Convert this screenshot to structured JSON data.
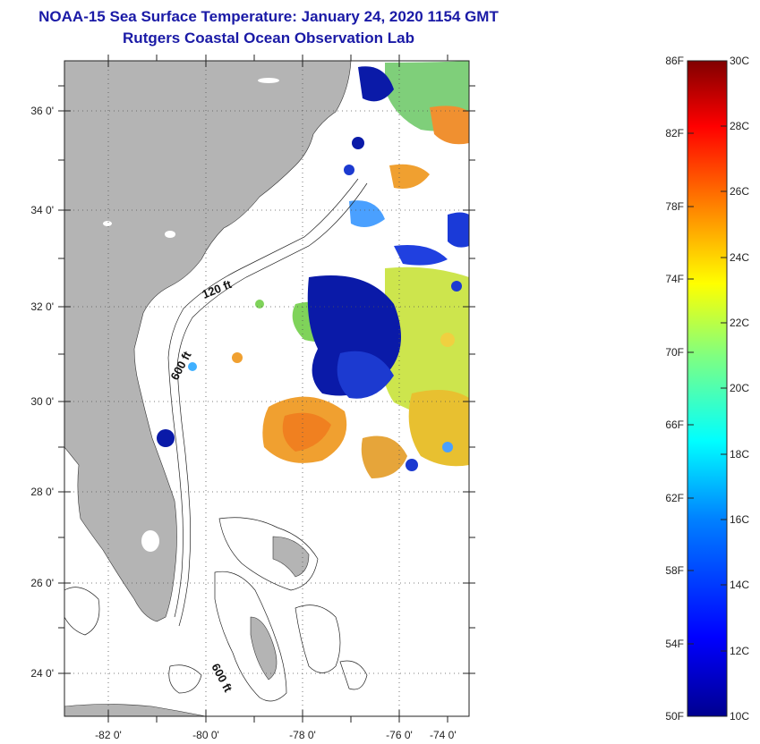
{
  "header": {
    "title": "NOAA-15 Sea Surface Temperature:  January 24, 2020 1154 GMT",
    "subtitle": "Rutgers Coastal Ocean Observation Lab"
  },
  "map": {
    "lat_labels": [
      "36 0'",
      "34 0'",
      "32 0'",
      "30 0'",
      "28 0'",
      "26 0'",
      "24 0'"
    ],
    "lon_labels": [
      "-82 0'",
      "-80 0'",
      "-78 0'",
      "-76 0'",
      "-74 0'"
    ],
    "contour_labels": [
      "120 ft",
      "600 ft",
      "600 ft"
    ]
  },
  "colorbar": {
    "fahrenheit_labels": [
      "86F",
      "82F",
      "78F",
      "74F",
      "70F",
      "66F",
      "62F",
      "58F",
      "54F",
      "50F"
    ],
    "celsius_labels": [
      "30C",
      "28C",
      "26C",
      "24C",
      "22C",
      "20C",
      "18C",
      "16C",
      "14C",
      "12C",
      "10C"
    ],
    "colors": [
      "#00008f",
      "#0000ff",
      "#0080ff",
      "#00ffff",
      "#80ff80",
      "#ffff00",
      "#ff8000",
      "#ff0000",
      "#800000"
    ]
  },
  "colors": {
    "title": "#1a1aa6",
    "land": "#b4b4b4",
    "ocean": "#ffffff"
  }
}
